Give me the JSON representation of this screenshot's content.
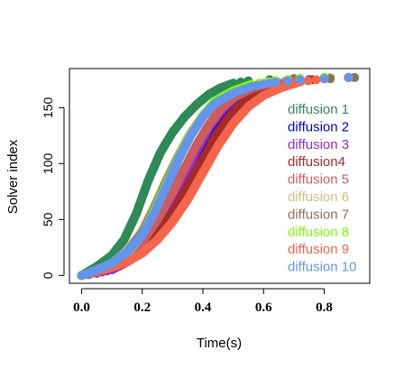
{
  "chart_data": {
    "type": "scatter",
    "title": "",
    "xlabel": "Time(s)",
    "ylabel": "Solver index",
    "xlim": [
      -0.04,
      0.95
    ],
    "ylim": [
      -7,
      185
    ],
    "x_ticks": [
      "0.0",
      "0.2",
      "0.4",
      "0.6",
      "0.8"
    ],
    "x_tick_values": [
      0.0,
      0.2,
      0.4,
      0.6,
      0.8
    ],
    "y_ticks": [
      "0",
      "50",
      "100",
      "150"
    ],
    "y_tick_values": [
      0,
      50,
      100,
      150
    ],
    "grid": false,
    "legend_position": "right",
    "y_count": 177,
    "series": [
      {
        "name": "diffusion 1",
        "color": "#2e8b57",
        "x": [
          0.0,
          0.05,
          0.1,
          0.14,
          0.18,
          0.22,
          0.26,
          0.3,
          0.34,
          0.38,
          0.42,
          0.46,
          0.5,
          0.55,
          0.62,
          0.7,
          0.8,
          0.87
        ],
        "y": [
          0,
          8,
          18,
          32,
          55,
          85,
          110,
          128,
          142,
          153,
          162,
          168,
          172,
          174,
          175,
          176,
          177,
          177
        ]
      },
      {
        "name": "diffusion 2",
        "color": "#0000cd",
        "x": [
          0.0,
          0.05,
          0.1,
          0.15,
          0.2,
          0.25,
          0.3,
          0.34,
          0.38,
          0.42,
          0.46,
          0.5,
          0.55,
          0.62,
          0.7,
          0.8,
          0.88
        ],
        "y": [
          0,
          4,
          8,
          14,
          24,
          40,
          62,
          85,
          108,
          128,
          144,
          156,
          165,
          171,
          174,
          176,
          177
        ]
      },
      {
        "name": "diffusion 3",
        "color": "#8a2be2",
        "x": [
          0.0,
          0.05,
          0.1,
          0.15,
          0.2,
          0.25,
          0.3,
          0.34,
          0.38,
          0.42,
          0.46,
          0.5,
          0.56,
          0.62,
          0.7,
          0.8,
          0.88
        ],
        "y": [
          0,
          2,
          5,
          12,
          24,
          42,
          66,
          90,
          112,
          132,
          147,
          158,
          166,
          171,
          174,
          176,
          177
        ]
      },
      {
        "name": "diffusion4",
        "color": "#a52a2a",
        "x": [
          0.0,
          0.05,
          0.1,
          0.15,
          0.2,
          0.25,
          0.3,
          0.35,
          0.4,
          0.44,
          0.48,
          0.52,
          0.58,
          0.65,
          0.72,
          0.8,
          0.88
        ],
        "y": [
          0,
          3,
          7,
          14,
          24,
          38,
          56,
          80,
          104,
          124,
          140,
          152,
          163,
          170,
          174,
          176,
          177
        ]
      },
      {
        "name": "diffusion 5",
        "color": "#cd5c5c",
        "x": [
          0.0,
          0.05,
          0.1,
          0.15,
          0.2,
          0.25,
          0.3,
          0.34,
          0.38,
          0.42,
          0.46,
          0.5,
          0.56,
          0.62,
          0.7,
          0.8,
          0.88
        ],
        "y": [
          0,
          4,
          9,
          17,
          30,
          50,
          74,
          96,
          117,
          135,
          149,
          159,
          167,
          172,
          175,
          176,
          177
        ]
      },
      {
        "name": "diffusion 6",
        "color": "#deb887",
        "x": [
          0.0,
          0.05,
          0.1,
          0.15,
          0.2,
          0.24,
          0.28,
          0.32,
          0.36,
          0.4,
          0.44,
          0.5,
          0.56,
          0.64,
          0.72,
          0.82,
          0.92
        ],
        "y": [
          0,
          5,
          11,
          22,
          40,
          62,
          86,
          108,
          128,
          143,
          155,
          164,
          170,
          174,
          176,
          177,
          177
        ]
      },
      {
        "name": "diffusion 7",
        "color": "#8b7355",
        "x": [
          0.0,
          0.05,
          0.1,
          0.15,
          0.2,
          0.24,
          0.28,
          0.32,
          0.36,
          0.4,
          0.44,
          0.5,
          0.56,
          0.64,
          0.72,
          0.82,
          0.9
        ],
        "y": [
          0,
          5,
          11,
          21,
          38,
          60,
          84,
          106,
          126,
          142,
          154,
          163,
          169,
          173,
          175,
          176,
          177
        ]
      },
      {
        "name": "diffusion 8",
        "color": "#7fff00",
        "x": [
          0.0,
          0.05,
          0.1,
          0.15,
          0.2,
          0.24,
          0.28,
          0.32,
          0.36,
          0.4,
          0.44,
          0.5,
          0.56,
          0.64,
          0.72,
          0.8,
          0.88
        ],
        "y": [
          0,
          4,
          10,
          20,
          36,
          58,
          82,
          105,
          126,
          143,
          156,
          165,
          171,
          174,
          176,
          177,
          177
        ]
      },
      {
        "name": "diffusion 9",
        "color": "#f4664a",
        "x": [
          0.0,
          0.05,
          0.1,
          0.15,
          0.2,
          0.25,
          0.3,
          0.35,
          0.4,
          0.45,
          0.5,
          0.55,
          0.6,
          0.66,
          0.72,
          0.8,
          0.88
        ],
        "y": [
          0,
          3,
          7,
          12,
          20,
          32,
          48,
          68,
          92,
          116,
          136,
          151,
          161,
          168,
          173,
          176,
          177
        ]
      },
      {
        "name": "diffusion 10",
        "color": "#6495ed",
        "x": [
          0.0,
          0.05,
          0.1,
          0.15,
          0.2,
          0.24,
          0.28,
          0.32,
          0.36,
          0.4,
          0.44,
          0.5,
          0.56,
          0.64,
          0.72,
          0.8,
          0.88
        ],
        "y": [
          0,
          5,
          11,
          21,
          36,
          56,
          80,
          104,
          125,
          142,
          154,
          163,
          169,
          173,
          175,
          176,
          177
        ]
      }
    ]
  }
}
